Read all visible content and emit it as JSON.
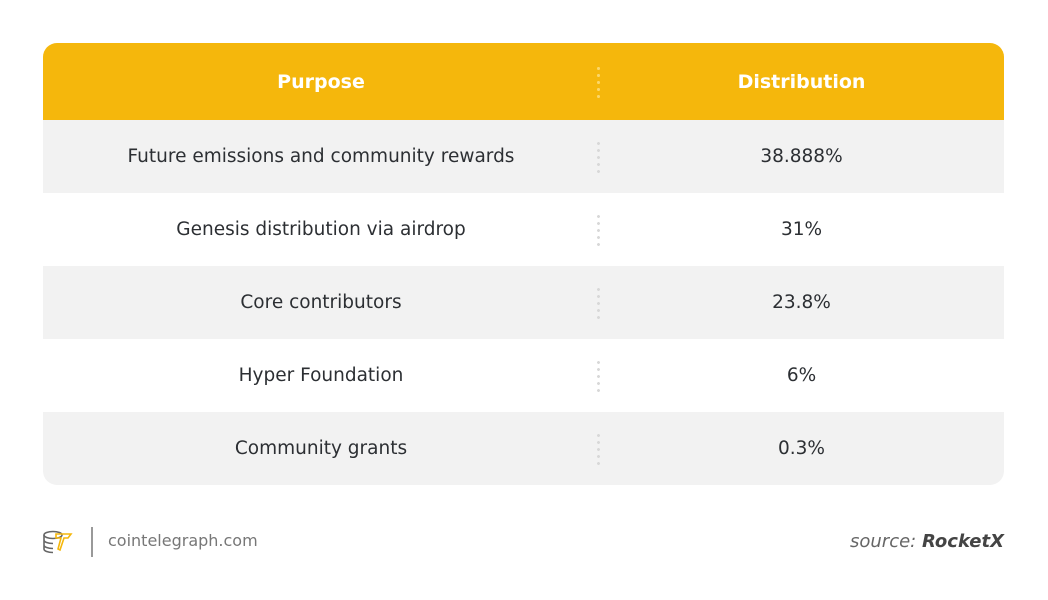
{
  "chart_data": {
    "type": "table",
    "columns": [
      "Purpose",
      "Distribution"
    ],
    "rows": [
      [
        "Future emissions and community rewards",
        "38.888%"
      ],
      [
        "Genesis distribution via airdrop",
        "31%"
      ],
      [
        "Core contributors",
        "23.8%"
      ],
      [
        "Hyper Foundation",
        "6%"
      ],
      [
        "Community grants",
        "0.3%"
      ]
    ]
  },
  "colors": {
    "header": "#f5b70c",
    "stripe": "#f2f2f2"
  },
  "footer": {
    "site": "cointelegraph.com",
    "source_prefix": "source:",
    "source_name": "RocketX",
    "logo_icon": "cointelegraph-logo-icon"
  }
}
